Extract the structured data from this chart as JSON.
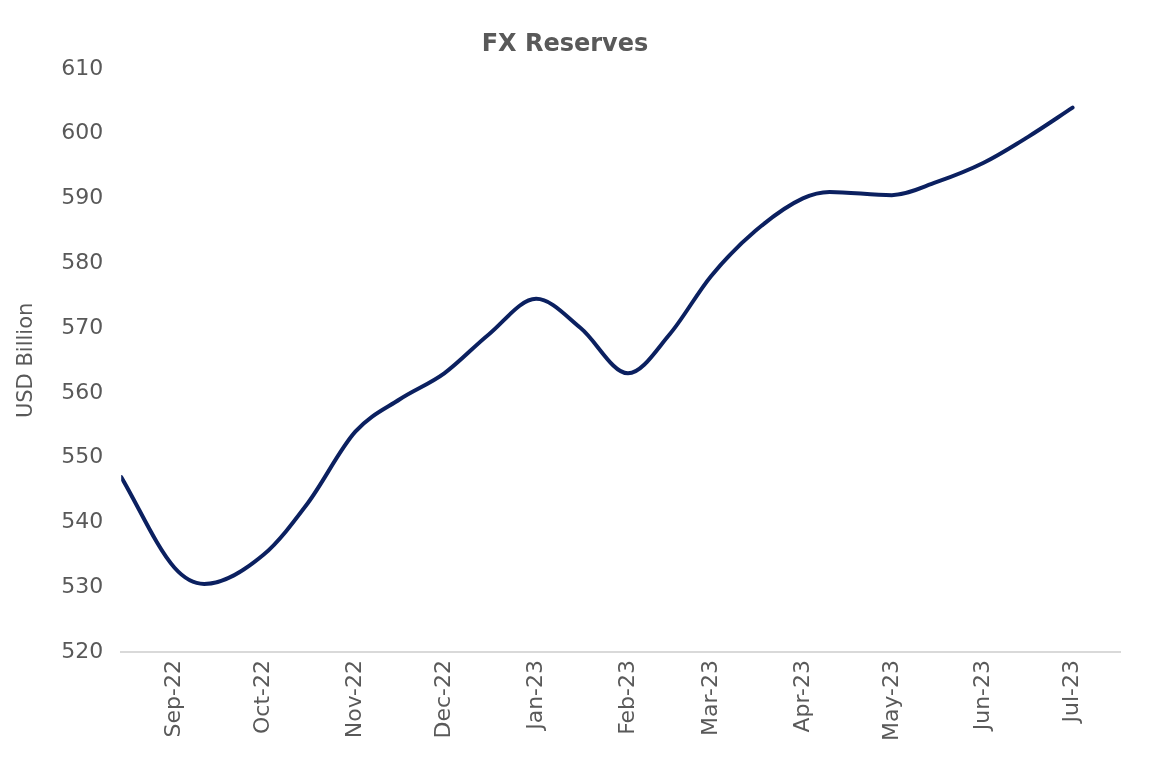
{
  "chart_data": {
    "type": "line",
    "title": "FX Reserves",
    "ylabel": "USD Billion",
    "marker": "none",
    "x": [
      "2022-08-14",
      "2022-09-01",
      "2022-09-11",
      "2022-10-01",
      "2022-10-16",
      "2022-11-01",
      "2022-11-16",
      "2022-12-01",
      "2022-12-16",
      "2023-01-01",
      "2023-01-16",
      "2023-02-01",
      "2023-02-15",
      "2023-03-01",
      "2023-03-16",
      "2023-04-01",
      "2023-04-10",
      "2023-05-01",
      "2023-05-16",
      "2023-06-01",
      "2023-06-16",
      "2023-07-01"
    ],
    "series": [
      {
        "color": "#0b2060",
        "values": [
          547,
          533,
          530.5,
          535,
          543,
          554,
          559,
          563,
          569,
          574.5,
          570,
          563,
          569,
          578,
          585,
          590,
          591,
          590.5,
          592.5,
          595.5,
          599.5,
          604
        ]
      }
    ],
    "xlim": [
      "2022-08-14",
      "2023-07-17"
    ],
    "xticks": [
      {
        "value": "2022-09",
        "label": "Sep-22"
      },
      {
        "value": "2022-10",
        "label": "Oct-22"
      },
      {
        "value": "2022-11",
        "label": "Nov-22"
      },
      {
        "value": "2022-12",
        "label": "Dec-22"
      },
      {
        "value": "2023-01",
        "label": "Jan-23"
      },
      {
        "value": "2023-02",
        "label": "Feb-23"
      },
      {
        "value": "2023-03",
        "label": "Mar-23"
      },
      {
        "value": "2023-04",
        "label": "Apr-23"
      },
      {
        "value": "2023-05",
        "label": "May-23"
      },
      {
        "value": "2023-06",
        "label": "Jun-23"
      },
      {
        "value": "2023-07",
        "label": "Jul-23"
      }
    ],
    "ylim": [
      520,
      610
    ],
    "yticks": [
      520,
      530,
      540,
      550,
      560,
      570,
      580,
      590,
      600,
      610
    ]
  }
}
